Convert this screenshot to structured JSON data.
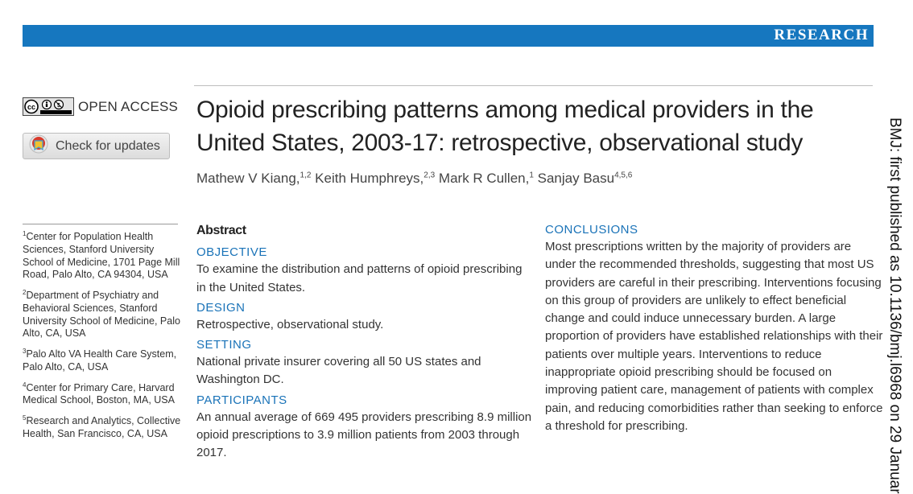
{
  "banner": {
    "label": "RESEARCH"
  },
  "access": {
    "badge_icon": "cc-by-nc-icon",
    "label": "OPEN ACCESS"
  },
  "updates": {
    "icon": "crossmark-icon",
    "label": "Check for updates"
  },
  "article": {
    "title": "Opioid prescribing patterns among medical providers in the United States, 2003-17: retrospective, observational study",
    "authors": [
      {
        "name": "Mathew V Kiang,",
        "sup": "1,2"
      },
      {
        "name": "Keith Humphreys,",
        "sup": "2,3"
      },
      {
        "name": "Mark R Cullen,",
        "sup": "1"
      },
      {
        "name": "Sanjay Basu",
        "sup": "4,5,6"
      }
    ]
  },
  "affiliations": [
    {
      "sup": "1",
      "text": "Center for Population Health Sciences, Stanford University School of Medicine, 1701 Page Mill Road, Palo Alto, CA 94304, USA"
    },
    {
      "sup": "2",
      "text": "Department of Psychiatry and Behavioral Sciences, Stanford University School of Medicine, Palo Alto, CA, USA"
    },
    {
      "sup": "3",
      "text": "Palo Alto VA Health Care System, Palo Alto, CA, USA"
    },
    {
      "sup": "4",
      "text": "Center for Primary Care, Harvard Medical School, Boston, MA, USA"
    },
    {
      "sup": "5",
      "text": "Research and Analytics, Collective Health, San Francisco, CA, USA"
    }
  ],
  "abstract": {
    "title": "Abstract",
    "sections": [
      {
        "heading": "OBJECTIVE",
        "body": "To examine the distribution and patterns of opioid prescribing in the United States."
      },
      {
        "heading": "DESIGN",
        "body": "Retrospective, observational study."
      },
      {
        "heading": "SETTING",
        "body": "National private insurer covering all 50 US states and Washington DC."
      },
      {
        "heading": "PARTICIPANTS",
        "body": "An annual average of 669 495 providers prescribing 8.9 million opioid prescriptions to 3.9 million patients from 2003 through 2017."
      }
    ],
    "conclusions": {
      "heading": "CONCLUSIONS",
      "body": "Most prescriptions written by the majority of providers are under the recommended thresholds, suggesting that most US providers are careful in their prescribing. Interventions focusing on this group of providers are unlikely to effect beneficial change and could induce unnecessary burden. A large proportion of providers have established relationships with their patients over multiple years. Interventions to reduce inappropriate opioid prescribing should be focused on improving patient care, management of patients with complex pain, and reducing comorbidities rather than seeking to enforce a threshold for  prescribing."
    }
  },
  "sidebar": {
    "text": "BMJ: first published as 10.1136/bmj.l6968 on 29 Januar"
  },
  "colors": {
    "accent": "#1677bf",
    "heading": "#1a73b8",
    "text": "#333333"
  }
}
